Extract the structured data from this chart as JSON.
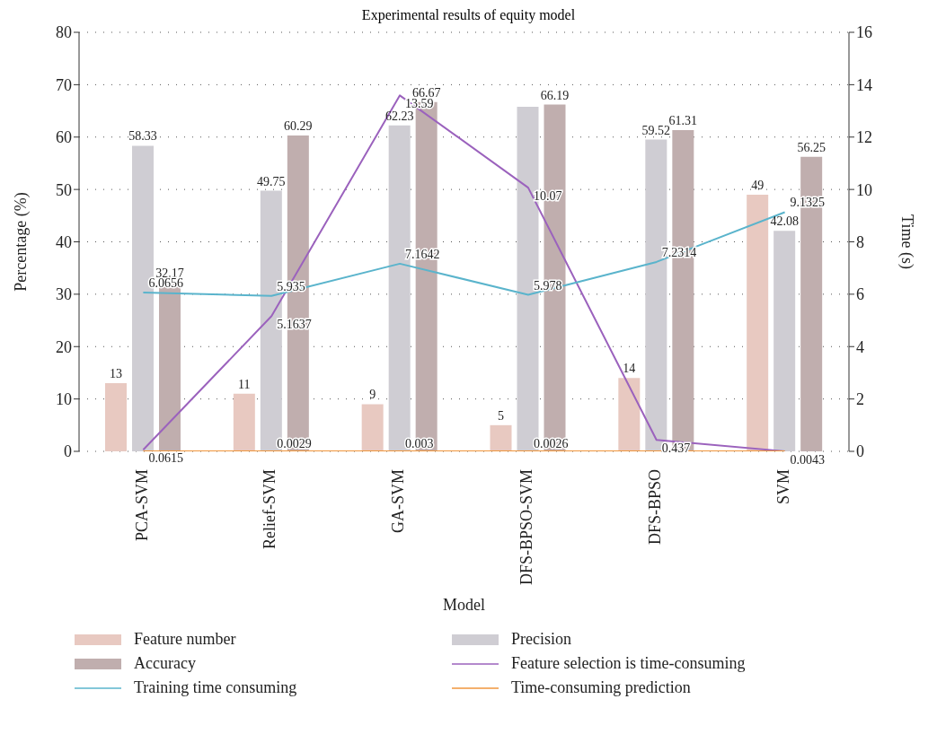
{
  "chart_data": {
    "type": "bar",
    "title": "Experimental results of equity model",
    "xlabel": "Model",
    "ylabel": "Percentage (%)",
    "y2label": "Time (s)",
    "categories": [
      "PCA-SVM",
      "Relief-SVM",
      "GA-SVM",
      "DFS-BPSO-SVM",
      "DFS-BPSO",
      "SVM"
    ],
    "series": [
      {
        "name": "Feature number",
        "color": "#e8c9c1",
        "values": [
          13,
          11,
          9,
          5,
          14,
          49
        ],
        "value_labels": [
          "13",
          "11",
          "9",
          "5",
          "14",
          "49"
        ]
      },
      {
        "name": "Precision",
        "color": "#cfcdd3",
        "values": [
          58.33,
          49.75,
          62.23,
          65.8,
          59.52,
          42.08
        ],
        "value_labels": [
          "58.33",
          "49.75",
          "62.23",
          null,
          "59.52",
          "42.08"
        ]
      },
      {
        "name": "Accuracy",
        "color": "#c0aeae",
        "values": [
          32.17,
          60.29,
          66.67,
          66.19,
          61.31,
          56.25
        ],
        "value_labels": [
          "32.17",
          "60.29",
          "66.67",
          "66.19",
          "61.31",
          "56.25"
        ]
      },
      {
        "name": "Feature selection is time-consuming",
        "type": "line",
        "axis": "y2",
        "color": "#9b62bd",
        "values": [
          0.0615,
          5.1637,
          13.59,
          10.07,
          0.437,
          0.0043
        ],
        "value_labels": [
          "0.0615",
          "5.1637",
          "13.59",
          "10.07",
          "0.437",
          "0.0043"
        ]
      },
      {
        "name": "Training time consuming",
        "type": "line",
        "axis": "y2",
        "color": "#5ab4cc",
        "values": [
          6.0656,
          5.935,
          7.1642,
          5.978,
          7.2314,
          9.1325
        ],
        "value_labels": [
          "6.0656",
          "5.935",
          "7.1642",
          "5.978",
          "7.2314",
          "9.1325"
        ]
      },
      {
        "name": "Time-consuming prediction",
        "type": "line",
        "axis": "y2",
        "color": "#f0963c",
        "values": [
          0,
          0.0029,
          0.003,
          0.0026,
          0,
          0
        ],
        "value_labels": [
          null,
          "0.0029",
          "0.003",
          "0.0026",
          null,
          null
        ]
      }
    ],
    "ylim": [
      0,
      80
    ],
    "yticks": [
      0,
      10,
      20,
      30,
      40,
      50,
      60,
      70,
      80
    ],
    "y2lim": [
      0,
      16
    ],
    "y2ticks": [
      0,
      2,
      4,
      6,
      8,
      10,
      12,
      14,
      16
    ],
    "grid": "y",
    "legend": "bottom",
    "marker": "none",
    "line_style": "solid"
  }
}
